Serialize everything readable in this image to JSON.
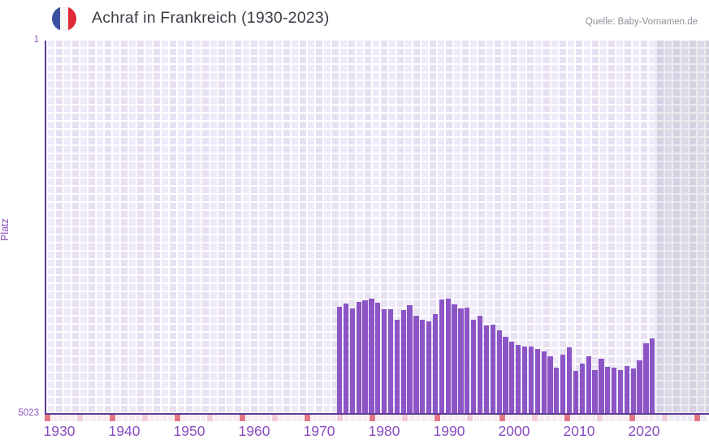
{
  "header": {
    "title": "Achraf in Frankreich (1930-2023)",
    "flag_icon": "france-flag-icon",
    "source": "Quelle: Baby-Vornamen.de"
  },
  "colors": {
    "bar": "#8c55c6",
    "axis": "#5e3d96",
    "tick_text": "#8a4cc0",
    "grid_cell_light": "#efeaf8",
    "grid_cell_dark": "#e7e1f2",
    "strip_default": "#f7edf1",
    "strip_default_future": "#edebf3",
    "strip_half_decade": "#f1ccd7",
    "strip_decade": "#e27683",
    "flag_blue": "#3a4fa0",
    "flag_red": "#e02a38"
  },
  "chart_data": {
    "type": "bar",
    "title": "Achraf in Frankreich (1930-2023)",
    "xlabel": "",
    "ylabel": "Platz",
    "y_axis": {
      "top_tick_label": "1",
      "bottom_tick_label": "5023",
      "min": 1,
      "max": 5023,
      "inverted": true
    },
    "x_axis": {
      "start_year": 1930,
      "end_year": 2031,
      "tick_labels": [
        "1930",
        "1940",
        "1950",
        "1960",
        "1970",
        "1980",
        "1990",
        "2000",
        "2010",
        "2020"
      ]
    },
    "legend": "none",
    "grid": "on",
    "series": [
      {
        "name": "Platz von Achraf in Frankreich",
        "years": [
          1974,
          1975,
          1976,
          1977,
          1978,
          1979,
          1980,
          1981,
          1982,
          1983,
          1984,
          1985,
          1986,
          1987,
          1988,
          1989,
          1990,
          1991,
          1992,
          1993,
          1994,
          1995,
          1996,
          1997,
          1998,
          1999,
          2000,
          2001,
          2002,
          2003,
          2004,
          2005,
          2006,
          2007,
          2008,
          2009,
          2010,
          2011,
          2012,
          2013,
          2014,
          2015,
          2016,
          2017,
          2018,
          2019,
          2020,
          2021,
          2022,
          2023
        ],
        "values": [
          3578,
          3538,
          3606,
          3519,
          3497,
          3476,
          3528,
          3617,
          3613,
          3759,
          3622,
          3559,
          3700,
          3752,
          3777,
          3679,
          3487,
          3476,
          3550,
          3606,
          3589,
          3752,
          3701,
          3835,
          3818,
          3900,
          3981,
          4047,
          4097,
          4119,
          4112,
          4150,
          4184,
          4250,
          4396,
          4228,
          4123,
          4446,
          4348,
          4246,
          4429,
          4276,
          4385,
          4396,
          4432,
          4380,
          4410,
          4300,
          4075,
          4003
        ]
      }
    ]
  }
}
